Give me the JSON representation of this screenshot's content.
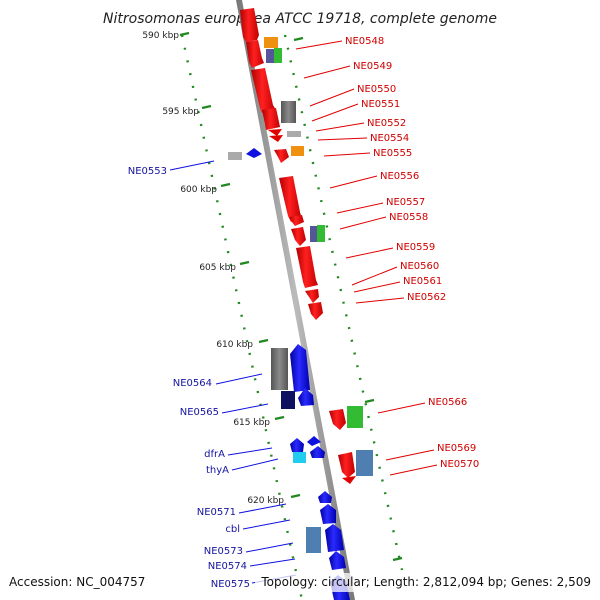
{
  "title": "Nitrosomonas europaea ATCC 19718, complete genome",
  "footer": {
    "accession": "Accession: NC_004757",
    "summary": "Topology: circular; Length: 2,812,094 bp; Genes: 2,509"
  },
  "ticks": [
    "590 kbp",
    "595 kbp",
    "600 kbp",
    "605 kbp",
    "610 kbp",
    "615 kbp",
    "620 kbp"
  ],
  "colors": {
    "forward": "#e00000",
    "reverse": "#1010e0",
    "label_red": "#d00000",
    "label_blue": "#1515a0",
    "tick_green": "#228822",
    "orange": "#f09010",
    "green": "#33bb33",
    "gray": "#777777",
    "navy": "#101060",
    "cyan": "#22ccee",
    "steel": "#4f7fb0",
    "purple": "#555599"
  },
  "labels_right": [
    "NE0548",
    "NE0549",
    "NE0550",
    "NE0551",
    "NE0552",
    "NE0554",
    "NE0555",
    "NE0556",
    "NE0557",
    "NE0558",
    "NE0559",
    "NE0560",
    "NE0561",
    "NE0562",
    "NE0566",
    "NE0569",
    "NE0570"
  ],
  "labels_left": [
    "NE0553",
    "NE0564",
    "NE0565",
    "dfrA",
    "thyA",
    "NE0571",
    "cbl",
    "NE0573",
    "NE0574",
    "NE0575"
  ]
}
